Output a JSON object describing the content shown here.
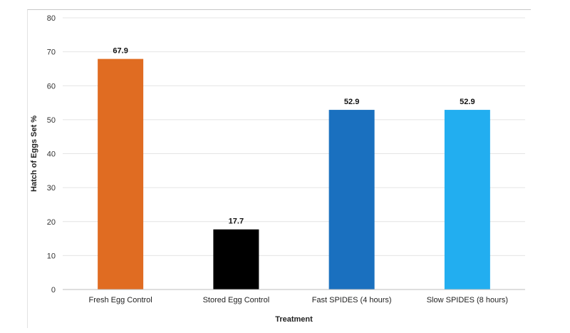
{
  "chart_data": {
    "type": "bar",
    "categories": [
      "Fresh Egg Control",
      "Stored Egg Control",
      "Fast SPIDES (4 hours)",
      "Slow SPIDES (8 hours)"
    ],
    "values": [
      67.9,
      17.7,
      52.9,
      52.9
    ],
    "value_labels": [
      "67.9",
      "17.7",
      "52.9",
      "52.9"
    ],
    "colors": [
      "#e06c22",
      "#000000",
      "#1a70bf",
      "#22aef0"
    ],
    "xlabel": "Treatment",
    "ylabel": "Hatch of Eggs Set %",
    "ylim": [
      0,
      80
    ],
    "yticks": [
      0,
      10,
      20,
      30,
      40,
      50,
      60,
      70,
      80
    ],
    "grid": true,
    "legend": "none"
  }
}
